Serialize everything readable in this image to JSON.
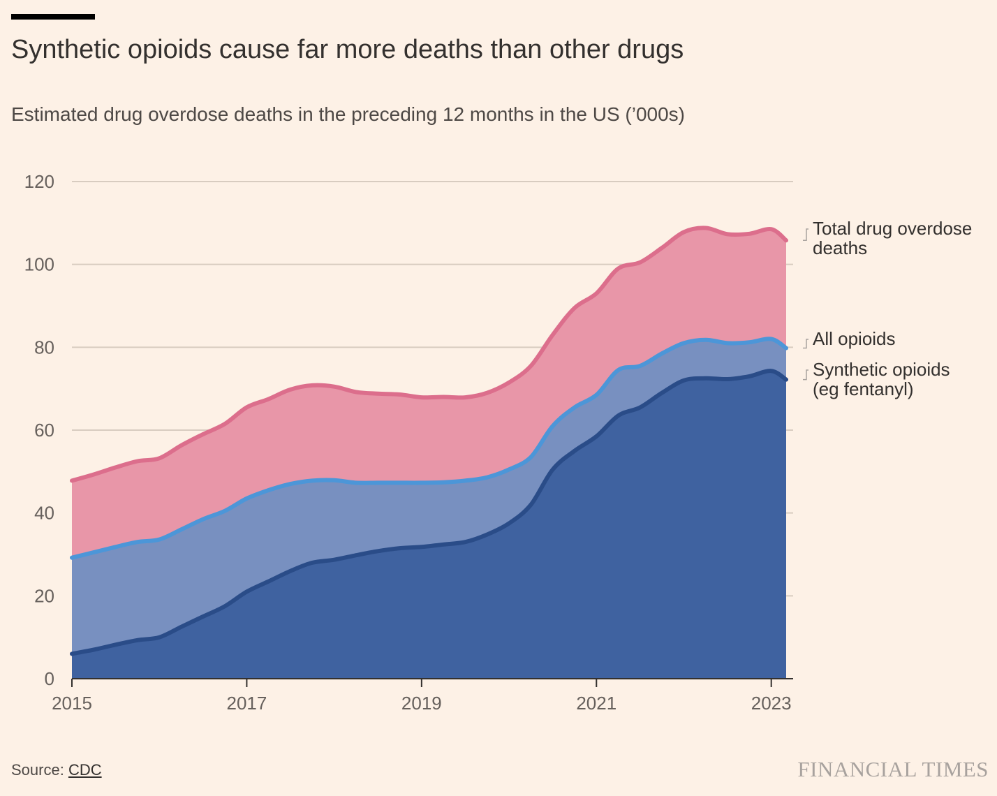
{
  "header": {
    "title": "Synthetic opioids cause far more deaths than other drugs",
    "subtitle": "Estimated drug overdose deaths in the preceding 12 months in the US (’000s)"
  },
  "footer": {
    "source_prefix": "Source: ",
    "source_link": "CDC",
    "brand": "FINANCIAL TIMES"
  },
  "colors": {
    "background": "#fdf1e6",
    "total_fill": "#e896a8",
    "total_line": "#dc6e8c",
    "opioids_fill": "#7890c0",
    "opioids_line": "#4c96d8",
    "synthetic_fill": "#3f62a0",
    "synthetic_line": "#2a4c88",
    "grid": "#d8ccc0",
    "axis": "#33302e"
  },
  "chart_data": {
    "type": "area",
    "xlabel": "",
    "ylabel": "",
    "ylim": [
      0,
      120
    ],
    "xlim": [
      2015.0,
      2023.25
    ],
    "yticks": [
      "0",
      "20",
      "40",
      "60",
      "80",
      "100",
      "120"
    ],
    "xticks": [
      "2015",
      "2017",
      "2019",
      "2021",
      "2023"
    ],
    "grid": true,
    "legend": "direct labels at right",
    "x": [
      2015.0,
      2015.25,
      2015.5,
      2015.75,
      2016.0,
      2016.25,
      2016.5,
      2016.75,
      2017.0,
      2017.25,
      2017.5,
      2017.75,
      2018.0,
      2018.25,
      2018.5,
      2018.75,
      2019.0,
      2019.25,
      2019.5,
      2019.75,
      2020.0,
      2020.25,
      2020.5,
      2020.75,
      2021.0,
      2021.25,
      2021.5,
      2021.75,
      2022.0,
      2022.25,
      2022.5,
      2022.75,
      2023.0,
      2023.17
    ],
    "series": [
      {
        "name": "Total drug overdose deaths",
        "label_lines": [
          "Total drug overdose",
          "deaths"
        ],
        "values": [
          47.8,
          49.3,
          51.0,
          52.5,
          53.2,
          56.3,
          59.0,
          61.5,
          65.5,
          67.5,
          69.8,
          70.8,
          70.5,
          69.2,
          68.8,
          68.6,
          67.9,
          68.0,
          67.9,
          69.0,
          71.5,
          75.5,
          83.0,
          89.5,
          93.0,
          99.0,
          100.5,
          104.0,
          107.8,
          108.8,
          107.3,
          107.4,
          108.5,
          105.8
        ],
        "fill": "#e896a8",
        "line": "#dc6e8c"
      },
      {
        "name": "All opioids",
        "label_lines": [
          "All opioids"
        ],
        "values": [
          29.2,
          30.5,
          31.8,
          33.0,
          33.6,
          36.0,
          38.5,
          40.5,
          43.5,
          45.5,
          47.0,
          47.8,
          47.9,
          47.3,
          47.3,
          47.3,
          47.3,
          47.4,
          47.8,
          48.6,
          50.5,
          53.5,
          61.0,
          65.5,
          68.5,
          74.5,
          75.5,
          78.5,
          81.0,
          81.8,
          81.0,
          81.2,
          82.0,
          79.8
        ],
        "fill": "#7890c0",
        "line": "#4c96d8"
      },
      {
        "name": "Synthetic opioids (eg fentanyl)",
        "label_lines": [
          "Synthetic opioids",
          "(eg fentanyl)"
        ],
        "values": [
          6.0,
          7.0,
          8.2,
          9.3,
          10.0,
          12.5,
          15.0,
          17.5,
          21.0,
          23.5,
          26.0,
          28.0,
          28.7,
          29.8,
          30.8,
          31.5,
          31.8,
          32.4,
          33.0,
          34.8,
          37.5,
          42.0,
          50.5,
          55.0,
          58.5,
          63.5,
          65.5,
          69.0,
          72.0,
          72.5,
          72.3,
          73.0,
          74.3,
          72.2
        ],
        "fill": "#3f62a0",
        "line": "#2a4c88"
      }
    ]
  }
}
